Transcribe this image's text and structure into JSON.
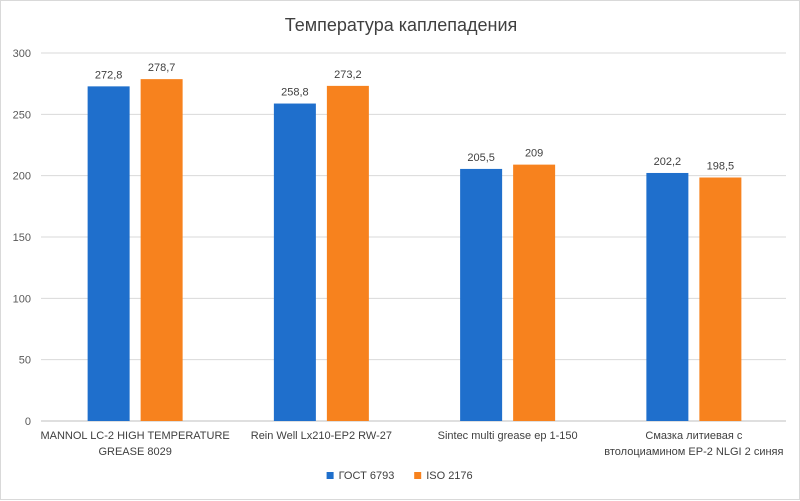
{
  "chart_data": {
    "type": "bar",
    "title": "Температура каплепадения",
    "categories": [
      [
        "MANNOL LC-2 HIGH TEMPERATURE",
        "GREASE 8029"
      ],
      [
        "Rein Well Lx210-EP2 RW-27"
      ],
      [
        "Sintec multi grease ep 1-150"
      ],
      [
        "Смазка литиевая с",
        "втолоциамином EP-2 NLGI 2 синяя"
      ]
    ],
    "series": [
      {
        "name": "ГОСТ 6793",
        "color": "#1f6fcc",
        "values": [
          272.8,
          258.8,
          205.5,
          202.2
        ],
        "labels": [
          "272,8",
          "258,8",
          "205,5",
          "202,2"
        ]
      },
      {
        "name": "ISO 2176",
        "color": "#f7821e",
        "values": [
          278.7,
          273.2,
          209,
          198.5
        ],
        "labels": [
          "278,7",
          "273,2",
          "209",
          "198,5"
        ]
      }
    ],
    "ylim": [
      0,
      300
    ],
    "yticks": [
      0,
      50,
      100,
      150,
      200,
      250,
      300
    ],
    "grid": true,
    "legend": "bottom-center"
  }
}
